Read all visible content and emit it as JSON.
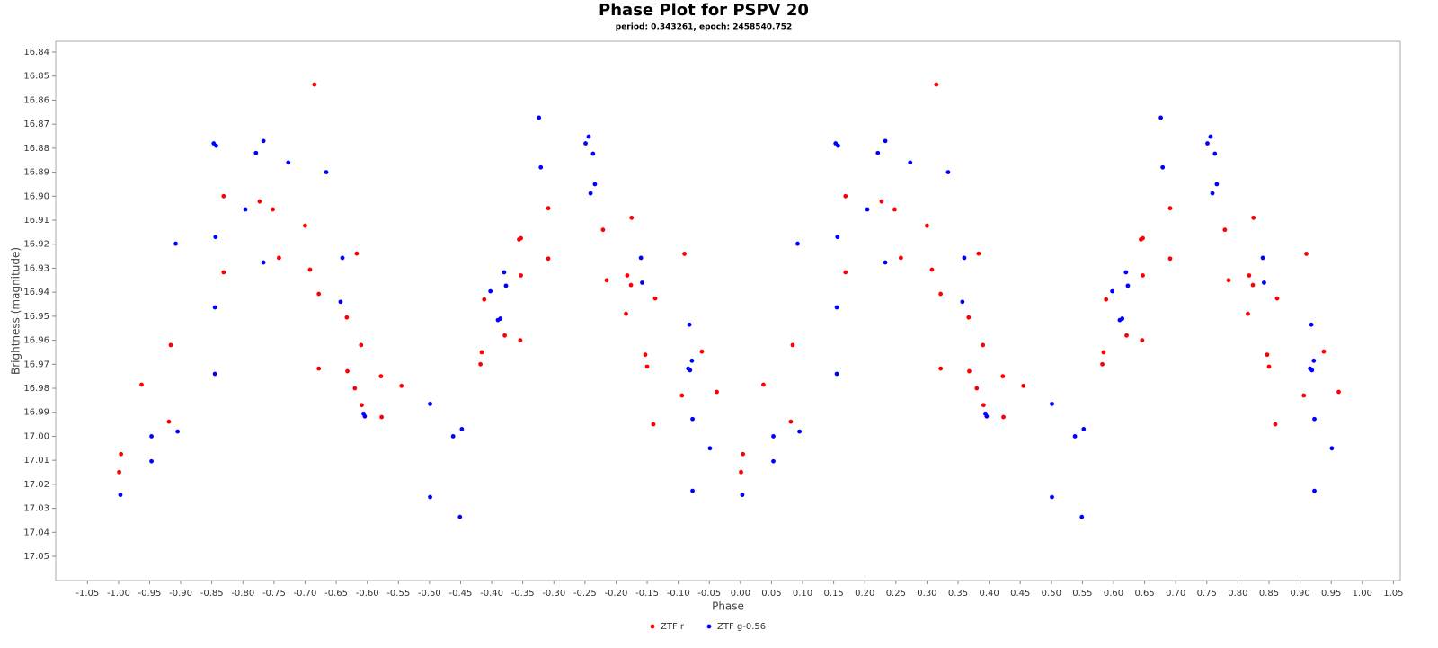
{
  "chart_data": {
    "type": "scatter",
    "title": "Phase Plot for PSPV 20",
    "subtitle": "period: 0.343261, epoch: 2458540.752",
    "x_label": "Phase",
    "y_label": "Brightness (magnitude)",
    "xlim": [
      -1.101,
      1.061
    ],
    "ylim": [
      16.8355,
      17.0601
    ],
    "y_inverted": true,
    "xticks": [
      -1.05,
      {
        "value": -1.0,
        "label": "-1.00"
      },
      -0.95,
      {
        "value": -0.9,
        "label": "-0.90"
      },
      -0.85,
      {
        "value": -0.8,
        "label": "-0.80"
      },
      -0.75,
      {
        "value": -0.7,
        "label": "-0.70"
      },
      -0.65,
      {
        "value": -0.6,
        "label": "-0.60"
      },
      -0.55,
      {
        "value": -0.5,
        "label": "-0.50"
      },
      -0.45,
      {
        "value": -0.4,
        "label": "-0.40"
      },
      -0.35,
      {
        "value": -0.3,
        "label": "-0.30"
      },
      -0.25,
      {
        "value": -0.2,
        "label": "-0.20"
      },
      -0.15,
      {
        "value": -0.1,
        "label": "-0.10"
      },
      -0.05,
      {
        "value": 0,
        "label": "0.00"
      },
      0.05,
      {
        "value": 0.1,
        "label": "0.10"
      },
      0.15,
      {
        "value": 0.2,
        "label": "0.20"
      },
      0.25,
      {
        "value": 0.3,
        "label": "0.30"
      },
      0.35,
      {
        "value": 0.4,
        "label": "0.40"
      },
      0.45,
      {
        "value": 0.5,
        "label": "0.50"
      },
      0.55,
      {
        "value": 0.6,
        "label": "0.60"
      },
      0.65,
      {
        "value": 0.7,
        "label": "0.70"
      },
      0.75,
      {
        "value": 0.8,
        "label": "0.80"
      },
      0.85,
      {
        "value": 0.9,
        "label": "0.90"
      },
      0.95,
      {
        "value": 1,
        "label": "1.00"
      },
      1.05
    ],
    "yticks": [
      16.84,
      16.85,
      16.86,
      16.87,
      16.88,
      16.89,
      {
        "value": 16.9,
        "label": "16.90"
      },
      16.91,
      16.92,
      16.93,
      16.94,
      16.95,
      16.96,
      16.97,
      16.98,
      16.99,
      {
        "value": 17,
        "label": "17.00"
      },
      17.01,
      17.02,
      17.03,
      17.04,
      17.05
    ],
    "grid": false,
    "legend": "bottom",
    "series": [
      {
        "name": "ZTF r",
        "color": "#ff0000",
        "x": [
          -0.996,
          -0.999,
          -0.963,
          -0.919,
          -0.916,
          -0.831,
          -0.831,
          -0.773,
          -0.752,
          -0.742,
          -0.7,
          -0.685,
          -0.692,
          -0.678,
          -0.678,
          -0.633,
          -0.632,
          -0.617,
          -0.61,
          -0.62,
          -0.609,
          -0.577,
          -0.578,
          -0.545,
          -0.412,
          -0.416,
          -0.418,
          -0.379,
          -0.356,
          -0.353,
          -0.353,
          -0.354,
          -0.309,
          -0.309,
          -0.221,
          -0.215,
          -0.175,
          -0.182,
          -0.176,
          -0.184,
          -0.137,
          -0.153,
          -0.15,
          -0.14,
          -0.09,
          -0.094,
          -0.062,
          -0.038,
          0.004,
          0.001,
          0.037,
          0.081,
          0.084,
          0.169,
          0.169,
          0.227,
          0.248,
          0.258,
          0.3,
          0.315,
          0.308,
          0.322,
          0.322,
          0.367,
          0.368,
          0.383,
          0.39,
          0.38,
          0.391,
          0.423,
          0.422,
          0.455,
          0.588,
          0.584,
          0.582,
          0.621,
          0.644,
          0.647,
          0.647,
          0.646,
          0.691,
          0.691,
          0.779,
          0.785,
          0.825,
          0.818,
          0.824,
          0.816,
          0.863,
          0.847,
          0.85,
          0.86,
          0.91,
          0.906,
          0.938,
          0.962
        ],
        "values": [
          17.0074,
          17.0149,
          16.9785,
          16.9939,
          16.962,
          16.9,
          16.9317,
          16.9022,
          16.9055,
          16.9257,
          16.9123,
          16.8535,
          16.9306,
          16.9407,
          16.9718,
          16.9505,
          16.9729,
          16.9239,
          16.962,
          16.98,
          16.987,
          16.992,
          16.975,
          16.979,
          16.943,
          16.965,
          16.97,
          16.958,
          16.918,
          16.9175,
          16.933,
          16.96,
          16.905,
          16.926,
          16.914,
          16.935,
          16.909,
          16.933,
          16.937,
          16.949,
          16.9426,
          16.966,
          16.971,
          16.995,
          16.924,
          16.983,
          16.9647,
          16.9815,
          17.0074,
          17.0149,
          16.9785,
          16.9939,
          16.962,
          16.9,
          16.9317,
          16.9022,
          16.9055,
          16.9257,
          16.9123,
          16.8535,
          16.9306,
          16.9407,
          16.9718,
          16.9505,
          16.9729,
          16.9239,
          16.962,
          16.98,
          16.987,
          16.992,
          16.975,
          16.979,
          16.943,
          16.965,
          16.97,
          16.958,
          16.918,
          16.9175,
          16.933,
          16.96,
          16.905,
          16.926,
          16.914,
          16.935,
          16.909,
          16.933,
          16.937,
          16.949,
          16.9426,
          16.966,
          16.971,
          16.995,
          16.924,
          16.983,
          16.9647,
          16.9815
        ]
      },
      {
        "name": "ZTF g-0.56",
        "color": "#0000ff",
        "x": [
          -0.997,
          -0.947,
          -0.947,
          -0.905,
          -0.908,
          -0.847,
          -0.843,
          -0.844,
          -0.845,
          -0.845,
          -0.796,
          -0.779,
          -0.767,
          -0.767,
          -0.727,
          -0.666,
          -0.64,
          -0.643,
          -0.606,
          -0.604,
          -0.499,
          -0.499,
          -0.462,
          -0.448,
          -0.451,
          -0.402,
          -0.39,
          -0.386,
          -0.38,
          -0.377,
          -0.324,
          -0.321,
          -0.249,
          -0.244,
          -0.237,
          -0.234,
          -0.241,
          -0.16,
          -0.158,
          -0.082,
          -0.084,
          -0.081,
          -0.078,
          -0.077,
          -0.077,
          -0.049,
          0.003,
          0.053,
          0.053,
          0.095,
          0.092,
          0.153,
          0.157,
          0.156,
          0.155,
          0.155,
          0.204,
          0.221,
          0.233,
          0.233,
          0.273,
          0.334,
          0.36,
          0.357,
          0.394,
          0.396,
          0.501,
          0.501,
          0.538,
          0.552,
          0.549,
          0.598,
          0.61,
          0.614,
          0.62,
          0.623,
          0.676,
          0.679,
          0.751,
          0.756,
          0.763,
          0.766,
          0.759,
          0.84,
          0.842,
          0.918,
          0.916,
          0.919,
          0.922,
          0.923,
          0.923,
          0.951
        ],
        "values": [
          17.0244,
          17,
          17.0104,
          16.998,
          16.9198,
          16.878,
          16.879,
          16.917,
          16.9463,
          16.974,
          16.9055,
          16.882,
          16.877,
          16.9276,
          16.886,
          16.89,
          16.9257,
          16.944,
          16.9906,
          16.9917,
          16.9865,
          17.0253,
          17,
          16.997,
          17.0336,
          16.9396,
          16.9516,
          16.951,
          16.9317,
          16.9373,
          16.8673,
          16.888,
          16.878,
          16.8752,
          16.8823,
          16.895,
          16.8988,
          16.9257,
          16.936,
          16.9535,
          16.9718,
          16.9725,
          16.9685,
          16.9928,
          17.0227,
          17.005,
          17.0244,
          17,
          17.0104,
          16.998,
          16.9198,
          16.878,
          16.879,
          16.917,
          16.9463,
          16.974,
          16.9055,
          16.882,
          16.877,
          16.9276,
          16.886,
          16.89,
          16.9257,
          16.944,
          16.9906,
          16.9917,
          16.9865,
          17.0253,
          17,
          16.997,
          17.0336,
          16.9396,
          16.9516,
          16.951,
          16.9317,
          16.9373,
          16.8673,
          16.888,
          16.878,
          16.8752,
          16.8823,
          16.895,
          16.8988,
          16.9257,
          16.936,
          16.9535,
          16.9718,
          16.9725,
          16.9685,
          16.9928,
          17.0227,
          17.005
        ]
      }
    ]
  }
}
